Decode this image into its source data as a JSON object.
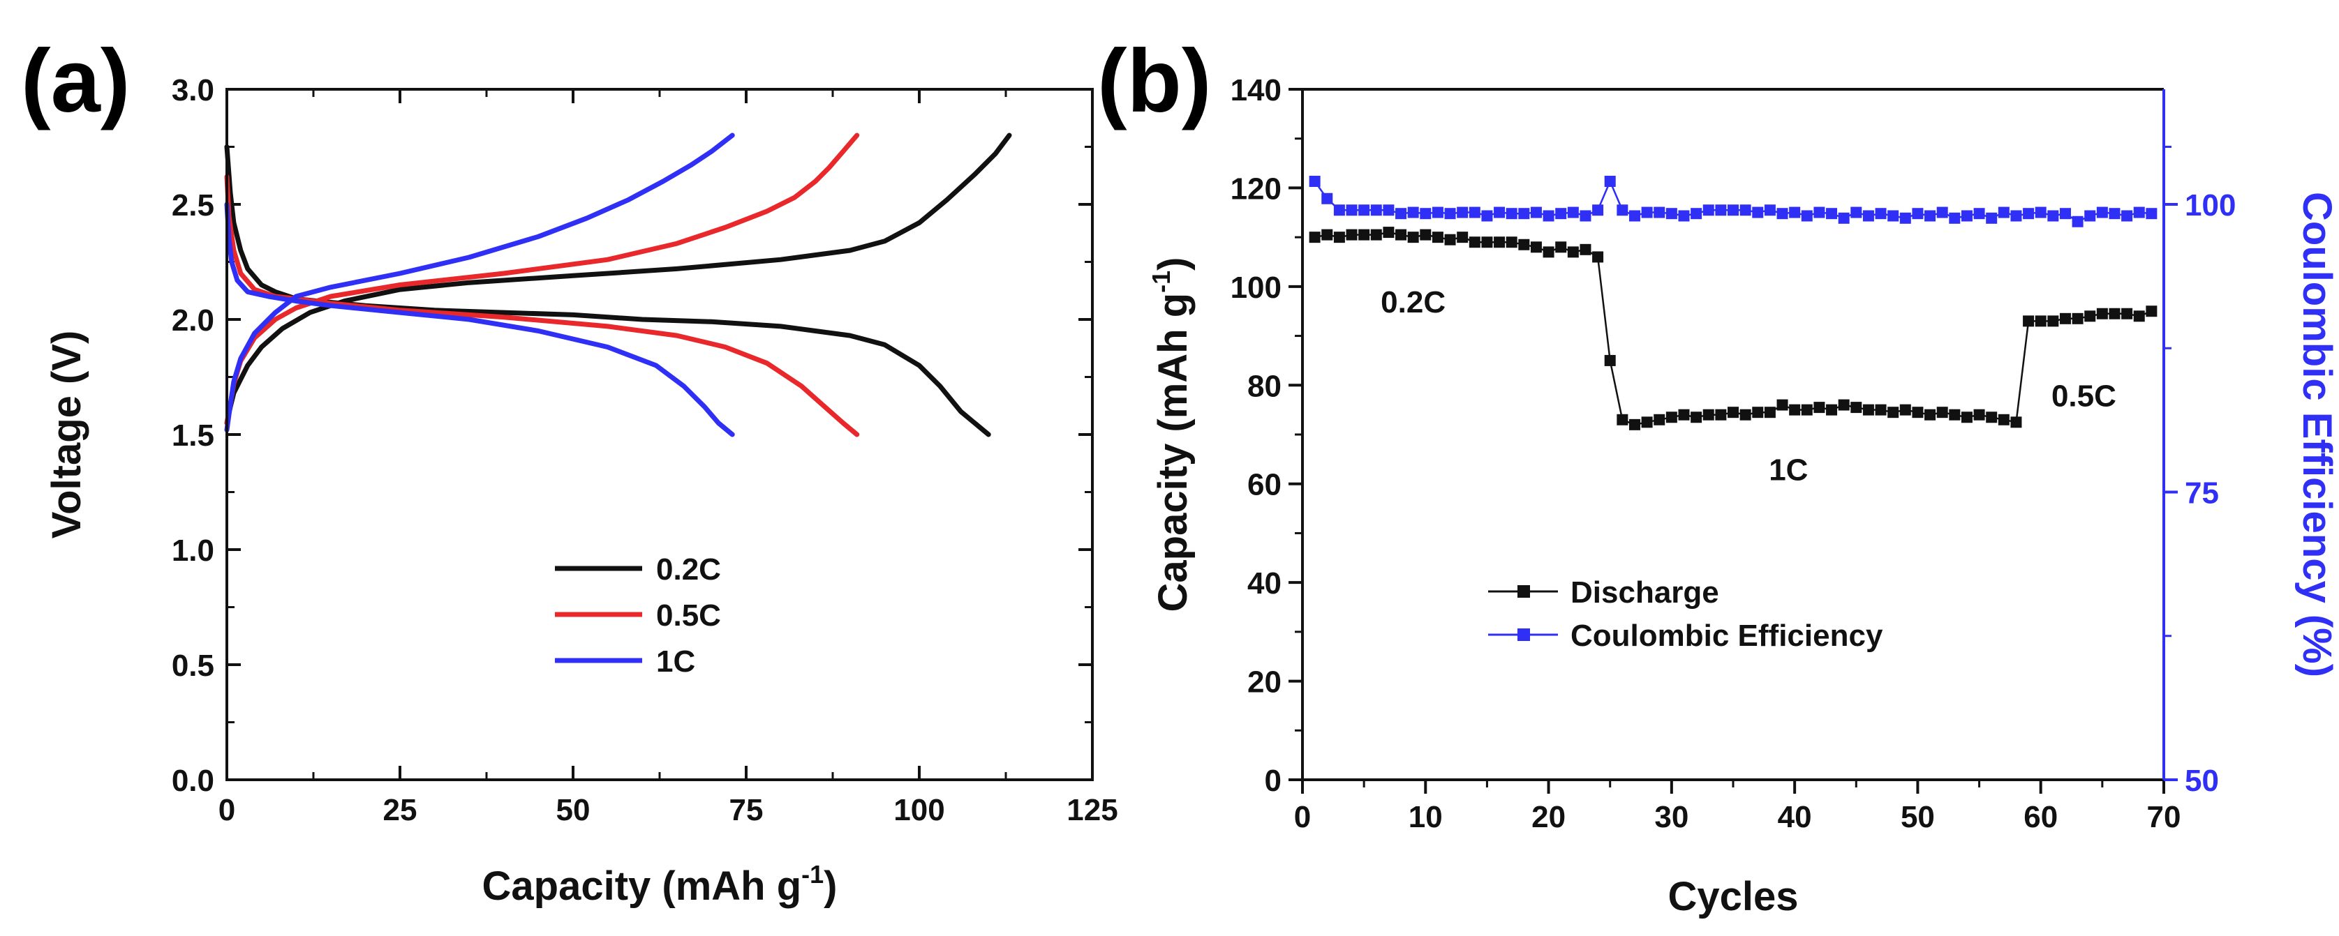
{
  "figure": {
    "panel_a_label": "(a)",
    "panel_b_label": "(b)"
  },
  "colors": {
    "black": "#111111",
    "red": "#e8282b",
    "blue": "#2f2ff5",
    "efficiency_axis": "#2f2ff5"
  },
  "chart_data": [
    {
      "id": "a",
      "type": "line",
      "xlabel_main": "Capacity (mAh g",
      "xlabel_sup": "-1",
      "xlabel_end": ")",
      "ylabel": "Voltage (V)",
      "xlim": [
        0,
        125
      ],
      "ylim": [
        0.0,
        3.0
      ],
      "xticks": [
        0,
        25,
        50,
        75,
        100,
        125
      ],
      "yticks": [
        0.0,
        0.5,
        1.0,
        1.5,
        2.0,
        2.5,
        3.0
      ],
      "xtick_labels": [
        "0",
        "25",
        "50",
        "75",
        "100",
        "125"
      ],
      "ytick_labels": [
        "0.0",
        "0.5",
        "1.0",
        "1.5",
        "2.0",
        "2.5",
        "3.0"
      ],
      "legend": [
        {
          "label": "0.2C",
          "color": "#111111"
        },
        {
          "label": "0.5C",
          "color": "#e8282b"
        },
        {
          "label": "1C",
          "color": "#2f2ff5"
        }
      ],
      "series": [
        {
          "name": "0.2C discharge",
          "color": "#111111",
          "x": [
            0,
            0.5,
            1,
            2,
            3,
            5,
            7,
            10,
            13,
            20,
            30,
            40,
            50,
            60,
            70,
            80,
            85,
            90,
            95,
            100,
            103,
            106,
            110
          ],
          "y": [
            2.75,
            2.55,
            2.42,
            2.3,
            2.22,
            2.15,
            2.12,
            2.09,
            2.08,
            2.06,
            2.04,
            2.03,
            2.02,
            2.0,
            1.99,
            1.97,
            1.95,
            1.93,
            1.89,
            1.8,
            1.71,
            1.6,
            1.5
          ]
        },
        {
          "name": "0.2C charge",
          "color": "#111111",
          "x": [
            0,
            0.5,
            1,
            2,
            3,
            5,
            8,
            12,
            17,
            25,
            35,
            50,
            65,
            80,
            90,
            95,
            100,
            104,
            108,
            111,
            113
          ],
          "y": [
            1.55,
            1.62,
            1.68,
            1.74,
            1.8,
            1.88,
            1.96,
            2.03,
            2.08,
            2.13,
            2.16,
            2.19,
            2.22,
            2.26,
            2.3,
            2.34,
            2.42,
            2.52,
            2.63,
            2.72,
            2.8
          ]
        },
        {
          "name": "0.5C discharge",
          "color": "#e8282b",
          "x": [
            0,
            0.3,
            1,
            2,
            4,
            7,
            10,
            15,
            25,
            40,
            55,
            65,
            72,
            78,
            83,
            86,
            89,
            91
          ],
          "y": [
            2.62,
            2.45,
            2.3,
            2.2,
            2.13,
            2.1,
            2.09,
            2.07,
            2.04,
            2.01,
            1.97,
            1.93,
            1.88,
            1.81,
            1.71,
            1.63,
            1.55,
            1.5
          ]
        },
        {
          "name": "0.5C charge",
          "color": "#e8282b",
          "x": [
            0,
            0.5,
            1,
            2,
            4,
            7,
            10,
            15,
            25,
            40,
            55,
            65,
            72,
            78,
            82,
            85,
            87,
            89,
            91
          ],
          "y": [
            1.55,
            1.63,
            1.72,
            1.82,
            1.92,
            2.0,
            2.05,
            2.1,
            2.15,
            2.2,
            2.26,
            2.33,
            2.4,
            2.47,
            2.53,
            2.6,
            2.66,
            2.73,
            2.8
          ]
        },
        {
          "name": "1C discharge",
          "color": "#2f2ff5",
          "x": [
            0,
            0.3,
            0.7,
            1.5,
            3,
            6,
            10,
            15,
            25,
            35,
            45,
            55,
            62,
            66,
            69,
            71,
            73
          ],
          "y": [
            2.5,
            2.35,
            2.25,
            2.17,
            2.12,
            2.1,
            2.08,
            2.06,
            2.03,
            2.0,
            1.95,
            1.88,
            1.8,
            1.71,
            1.62,
            1.55,
            1.5
          ]
        },
        {
          "name": "1C charge",
          "color": "#2f2ff5",
          "x": [
            0,
            0.5,
            1,
            2,
            4,
            7,
            10,
            15,
            25,
            35,
            45,
            52,
            58,
            63,
            67,
            70,
            73
          ],
          "y": [
            1.52,
            1.63,
            1.73,
            1.83,
            1.94,
            2.03,
            2.1,
            2.14,
            2.2,
            2.27,
            2.36,
            2.44,
            2.52,
            2.6,
            2.67,
            2.73,
            2.8
          ]
        }
      ]
    },
    {
      "id": "b",
      "type": "scatter",
      "xlabel": "Cycles",
      "ylabel_main": "Capacity (mAh g",
      "ylabel_sup": "-1",
      "ylabel_end": ")",
      "y2label": "Coulombic Efficiency (%)",
      "xlim": [
        0,
        70
      ],
      "ylim": [
        0,
        140
      ],
      "y2lim": [
        50,
        110
      ],
      "xticks": [
        0,
        10,
        20,
        30,
        40,
        50,
        60,
        70
      ],
      "yticks": [
        0,
        20,
        40,
        60,
        80,
        100,
        120,
        140
      ],
      "y2ticks": [
        50,
        75,
        100
      ],
      "xtick_labels": [
        "0",
        "10",
        "20",
        "30",
        "40",
        "50",
        "60",
        "70"
      ],
      "ytick_labels": [
        "0",
        "20",
        "40",
        "60",
        "80",
        "100",
        "120",
        "140"
      ],
      "y2tick_labels": [
        "50",
        "75",
        "100"
      ],
      "legend": [
        {
          "label": "Discharge",
          "color": "#111111"
        },
        {
          "label": "Coulombic Efficiency",
          "color": "#2f2ff5"
        }
      ],
      "annotations": [
        {
          "text": "0.2C",
          "x": 9,
          "y": 97
        },
        {
          "text": "1C",
          "x": 39.5,
          "y": 63
        },
        {
          "text": "0.5C",
          "x": 63.5,
          "y": 78
        }
      ],
      "series": [
        {
          "name": "Discharge",
          "color": "#111111",
          "axis": "left",
          "x": [
            1,
            2,
            3,
            4,
            5,
            6,
            7,
            8,
            9,
            10,
            11,
            12,
            13,
            14,
            15,
            16,
            17,
            18,
            19,
            20,
            21,
            22,
            23,
            24,
            25,
            26,
            27,
            28,
            29,
            30,
            31,
            32,
            33,
            34,
            35,
            36,
            37,
            38,
            39,
            40,
            41,
            42,
            43,
            44,
            45,
            46,
            47,
            48,
            49,
            50,
            51,
            52,
            53,
            54,
            55,
            56,
            57,
            58,
            59,
            60,
            61,
            62,
            63,
            64,
            65,
            66,
            67,
            68,
            69
          ],
          "y": [
            110,
            110.5,
            110,
            110.5,
            110.5,
            110.5,
            111,
            110.5,
            110,
            110.5,
            110,
            109.5,
            110,
            109,
            109,
            109,
            109,
            108.5,
            108,
            107,
            108,
            107,
            107.5,
            106,
            85,
            73,
            72,
            72.5,
            73,
            73.5,
            74,
            73.5,
            74,
            74,
            74.5,
            74,
            74.5,
            74.5,
            76,
            75,
            75,
            75.5,
            75,
            76,
            75.5,
            75,
            75,
            74.5,
            75,
            74.5,
            74,
            74.5,
            74,
            73.5,
            74,
            73.5,
            73,
            72.5,
            93,
            93,
            93,
            93.5,
            93.5,
            94,
            94.5,
            94.5,
            94.5,
            94,
            95
          ]
        },
        {
          "name": "Coulombic Efficiency",
          "color": "#2f2ff5",
          "axis": "right",
          "x": [
            1,
            2,
            3,
            4,
            5,
            6,
            7,
            8,
            9,
            10,
            11,
            12,
            13,
            14,
            15,
            16,
            17,
            18,
            19,
            20,
            21,
            22,
            23,
            24,
            25,
            26,
            27,
            28,
            29,
            30,
            31,
            32,
            33,
            34,
            35,
            36,
            37,
            38,
            39,
            40,
            41,
            42,
            43,
            44,
            45,
            46,
            47,
            48,
            49,
            50,
            51,
            52,
            53,
            54,
            55,
            56,
            57,
            58,
            59,
            60,
            61,
            62,
            63,
            64,
            65,
            66,
            67,
            68,
            69
          ],
          "y": [
            102,
            100.5,
            99.5,
            99.5,
            99.5,
            99.5,
            99.5,
            99.2,
            99.3,
            99.2,
            99.3,
            99.2,
            99.3,
            99.3,
            99,
            99.3,
            99.2,
            99.2,
            99.3,
            99,
            99.2,
            99.3,
            99,
            99.5,
            102,
            99.5,
            99,
            99.3,
            99.3,
            99.2,
            99,
            99.2,
            99.5,
            99.5,
            99.5,
            99.5,
            99.3,
            99.5,
            99.2,
            99.3,
            99,
            99.3,
            99.2,
            98.8,
            99.3,
            99,
            99.2,
            99,
            98.8,
            99.2,
            99,
            99.3,
            98.8,
            99,
            99.2,
            98.8,
            99.3,
            99,
            99.2,
            99.3,
            99,
            99.2,
            98.5,
            99,
            99.3,
            99.2,
            99,
            99.3,
            99.2
          ]
        }
      ]
    }
  ]
}
